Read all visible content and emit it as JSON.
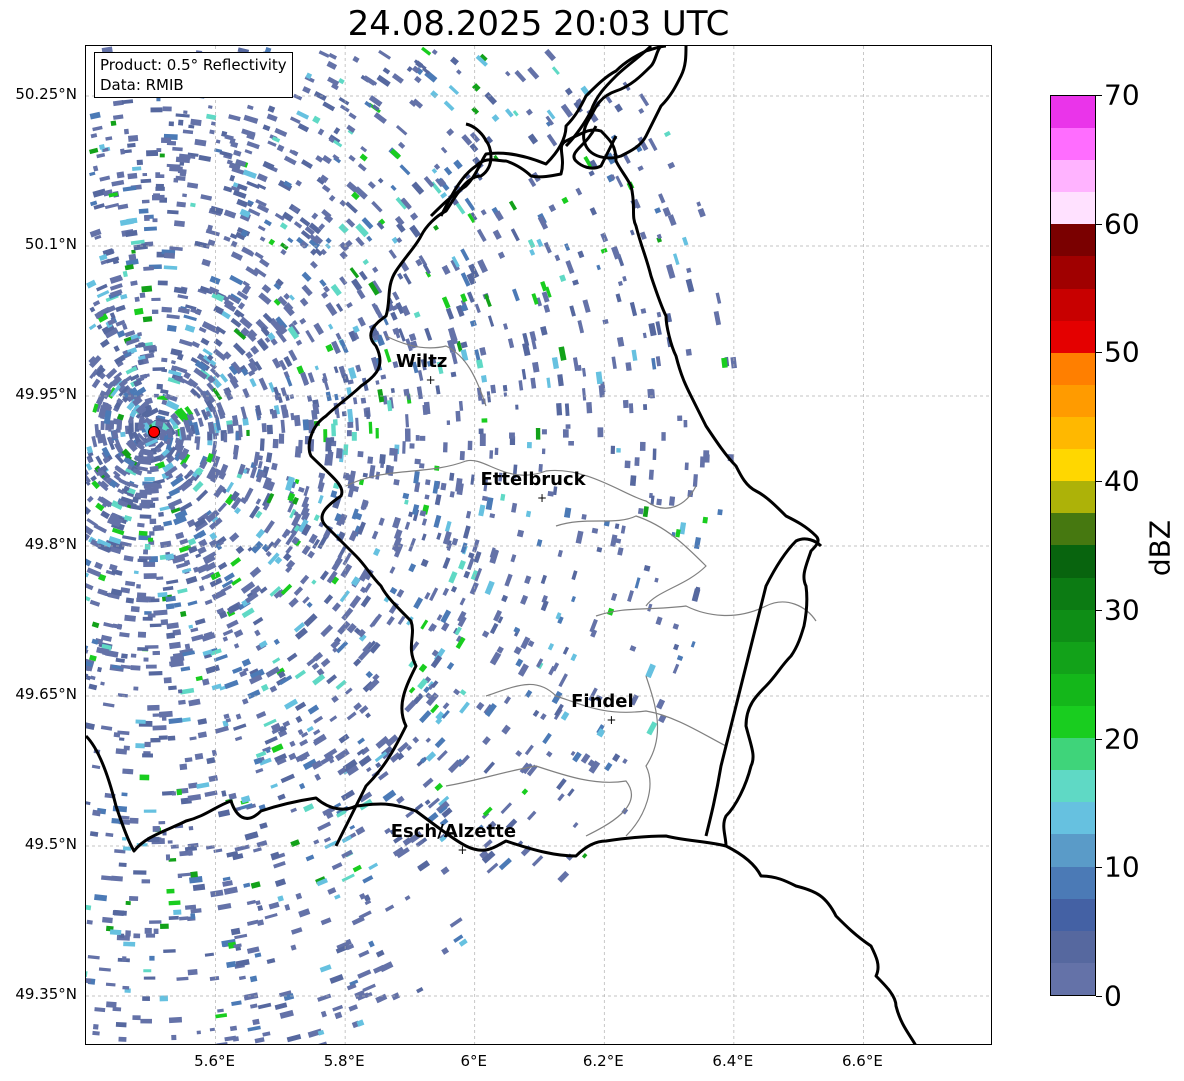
{
  "title": "24.08.2025 20:03 UTC",
  "info_box": {
    "product": "Product: 0.5° Reflectivity",
    "data": "Data: RMIB"
  },
  "map": {
    "lon_range": [
      5.4,
      6.8
    ],
    "lat_range": [
      49.3,
      50.3
    ],
    "lat_ticks": [
      "50.25°N",
      "50.1°N",
      "49.95°N",
      "49.8°N",
      "49.65°N",
      "49.5°N",
      "49.35°N"
    ],
    "lon_ticks": [
      "5.6°E",
      "5.8°E",
      "6°E",
      "6.2°E",
      "6.4°E",
      "6.6°E"
    ],
    "grid": true,
    "radar_site": {
      "lon": 5.505,
      "lat": 49.914,
      "color": "#ff0000"
    },
    "cities": [
      {
        "name": "Wiltz",
        "lon": 5.932,
        "lat": 49.966
      },
      {
        "name": "Ettelbruck",
        "lon": 6.104,
        "lat": 49.848
      },
      {
        "name": "Findel",
        "lon": 6.211,
        "lat": 49.626
      },
      {
        "name": "Esch/Alzette",
        "lon": 5.981,
        "lat": 49.496
      }
    ]
  },
  "colorbar": {
    "label": "dBZ",
    "ticks": [
      "0",
      "10",
      "20",
      "30",
      "40",
      "50",
      "60",
      "70"
    ],
    "range": [
      0,
      70
    ],
    "colors": [
      "#6472a8",
      "#56689f",
      "#4461a4",
      "#4b7ab6",
      "#5a9bc8",
      "#66c1e0",
      "#5fd9c5",
      "#3fd47a",
      "#19cd1f",
      "#14b71a",
      "#12a219",
      "#0e8e16",
      "#0c7b13",
      "#08640e",
      "#467810",
      "#adb208",
      "#ffd700",
      "#ffb800",
      "#ff9b00",
      "#ff7f00",
      "#e40000",
      "#c80000",
      "#a00000",
      "#7a0000",
      "#ffe1ff",
      "#ffb3ff",
      "#ff6dff",
      "#ea34ea"
    ]
  }
}
